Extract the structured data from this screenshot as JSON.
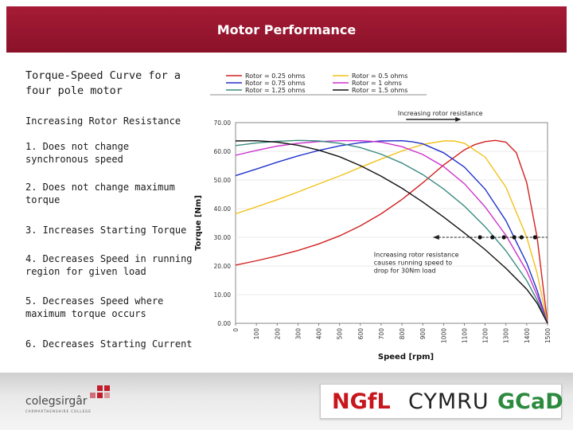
{
  "slide": {
    "title": "Motor Performance"
  },
  "bullets": {
    "heading": "Torque-Speed Curve for a four pole motor",
    "items": [
      "Increasing Rotor Resistance",
      "1. Does not change synchronous speed",
      "2. Does not change maximum torque",
      "3. Increases Starting Torque",
      "4. Decreases Speed in running region for given load",
      "5. Decreases Speed where maximum torque occurs",
      "6. Decreases Starting Current"
    ]
  },
  "chart_data": {
    "type": "line",
    "title": "",
    "xlabel": "Speed",
    "xunit": "[rpm]",
    "ylabel": "Torque",
    "yunit": "[Nm]",
    "xlim": [
      0,
      1500
    ],
    "ylim": [
      0,
      70
    ],
    "xticks": [
      "0",
      "100",
      "200",
      "300",
      "400",
      "500",
      "600",
      "700",
      "800",
      "900",
      "1000",
      "1100",
      "1200",
      "1300",
      "1400",
      "1500"
    ],
    "yticks": [
      "0.00",
      "10.00",
      "20.00",
      "30.00",
      "40.00",
      "50.00",
      "60.00",
      "70.00"
    ],
    "legend_position": "top",
    "series": [
      {
        "name": "Rotor = 0.25 ohms",
        "color": "#d42020",
        "x": [
          0,
          100,
          200,
          300,
          400,
          500,
          600,
          700,
          800,
          900,
          1000,
          1100,
          1150,
          1200,
          1250,
          1300,
          1350,
          1400,
          1450,
          1500
        ],
        "y": [
          20.3,
          21.8,
          23.5,
          25.4,
          27.7,
          30.5,
          34.0,
          38.2,
          43.2,
          49.0,
          55.2,
          60.5,
          62.3,
          63.4,
          63.8,
          63.2,
          59.5,
          49.0,
          30.0,
          0
        ]
      },
      {
        "name": "Rotor = 0.5 ohms",
        "color": "#f2c21a",
        "x": [
          0,
          100,
          200,
          300,
          400,
          500,
          600,
          700,
          800,
          900,
          1000,
          1050,
          1100,
          1200,
          1300,
          1400,
          1450,
          1500
        ],
        "y": [
          38.2,
          40.6,
          43.1,
          45.8,
          48.6,
          51.4,
          54.4,
          57.3,
          60.1,
          62.4,
          63.6,
          63.6,
          62.8,
          58.0,
          47.5,
          30.0,
          17.5,
          0
        ]
      },
      {
        "name": "Rotor = 0.75 ohms",
        "color": "#2233cc",
        "x": [
          0,
          100,
          200,
          300,
          400,
          500,
          600,
          700,
          800,
          850,
          900,
          1000,
          1100,
          1200,
          1300,
          1400,
          1450,
          1500
        ],
        "y": [
          51.5,
          53.8,
          56.2,
          58.4,
          60.3,
          61.9,
          63.0,
          63.6,
          63.7,
          63.3,
          62.6,
          59.5,
          54.5,
          46.8,
          35.8,
          21.0,
          11.5,
          0
        ]
      },
      {
        "name": "Rotor = 1 ohms",
        "color": "#cc33cc",
        "x": [
          0,
          100,
          200,
          300,
          400,
          500,
          600,
          650,
          700,
          800,
          900,
          1000,
          1100,
          1200,
          1300,
          1400,
          1450,
          1500
        ],
        "y": [
          58.6,
          60.3,
          61.8,
          62.8,
          63.4,
          63.7,
          63.7,
          63.5,
          63.2,
          61.6,
          58.9,
          54.7,
          48.7,
          40.6,
          30.7,
          18.2,
          9.8,
          0
        ]
      },
      {
        "name": "Rotor = 1.25 ohms",
        "color": "#3a8c80",
        "x": [
          0,
          100,
          200,
          300,
          400,
          500,
          600,
          700,
          800,
          900,
          1000,
          1100,
          1200,
          1300,
          1400,
          1450,
          1500
        ],
        "y": [
          62.0,
          62.9,
          63.5,
          63.8,
          63.6,
          62.8,
          61.3,
          59.0,
          55.9,
          51.9,
          46.9,
          40.9,
          33.7,
          25.3,
          14.9,
          8.1,
          0
        ]
      },
      {
        "name": "Rotor = 1.5 ohms",
        "color": "#111111",
        "x": [
          0,
          100,
          200,
          300,
          400,
          500,
          600,
          700,
          800,
          900,
          1000,
          1100,
          1200,
          1300,
          1400,
          1450,
          1500
        ],
        "y": [
          63.6,
          63.7,
          63.2,
          62.1,
          60.4,
          58.1,
          55.0,
          51.3,
          47.1,
          42.3,
          37.1,
          31.5,
          25.7,
          19.2,
          11.9,
          7.0,
          0
        ]
      }
    ],
    "load_line": {
      "torque": 30,
      "points_x": [
        1175,
        1235,
        1290,
        1340,
        1375,
        1440
      ]
    },
    "annotations": [
      "Increasing rotor resistance",
      "Increasing rotor resistance causes running speed to drop for 30Nm load"
    ]
  },
  "footer": {
    "logo_text": "colegsirgâr",
    "logo_sub": "CARMARTHENSHIRE COLLEGE",
    "brand_ngfl": "NGfL",
    "brand_cymru": "CYMRU",
    "brand_gcad": "GCaD"
  }
}
